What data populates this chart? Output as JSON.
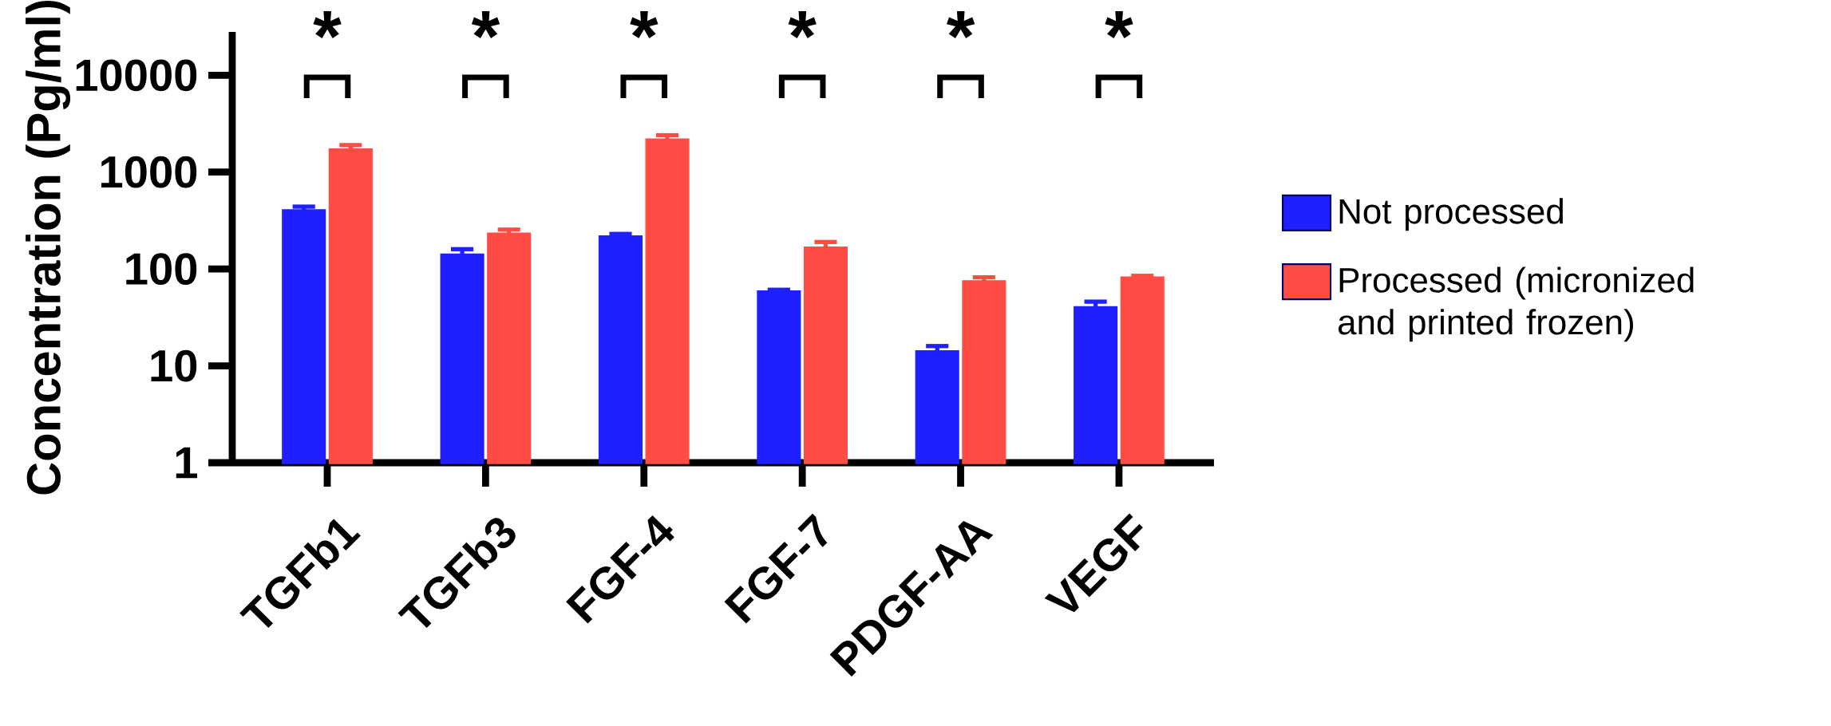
{
  "chart_data": {
    "type": "bar",
    "ylabel": "Concentration (Pg/ml)",
    "categories": [
      "TGFb1",
      "TGFb3",
      "FGF-4",
      "FGF-7",
      "PDGF-AA",
      "VEGF"
    ],
    "series": [
      {
        "name": "Not processed",
        "color": "#1f1fff",
        "values": [
          400,
          140,
          215,
          58,
          14,
          40
        ],
        "errors": [
          40,
          20,
          15,
          3,
          2,
          6
        ]
      },
      {
        "name": "Processed (micronized and printed frozen)",
        "color": "#ff4d45",
        "values": [
          1700,
          230,
          2150,
          165,
          74,
          81
        ],
        "errors": [
          200,
          25,
          250,
          25,
          8,
          4
        ]
      }
    ],
    "log": "y",
    "ylim": [
      1,
      28000
    ],
    "yticks": [
      1,
      10,
      100,
      1000,
      10000
    ],
    "legend": "right",
    "grid": false,
    "annotations": [
      "*",
      "*",
      "*",
      "*",
      "*",
      "*"
    ]
  }
}
